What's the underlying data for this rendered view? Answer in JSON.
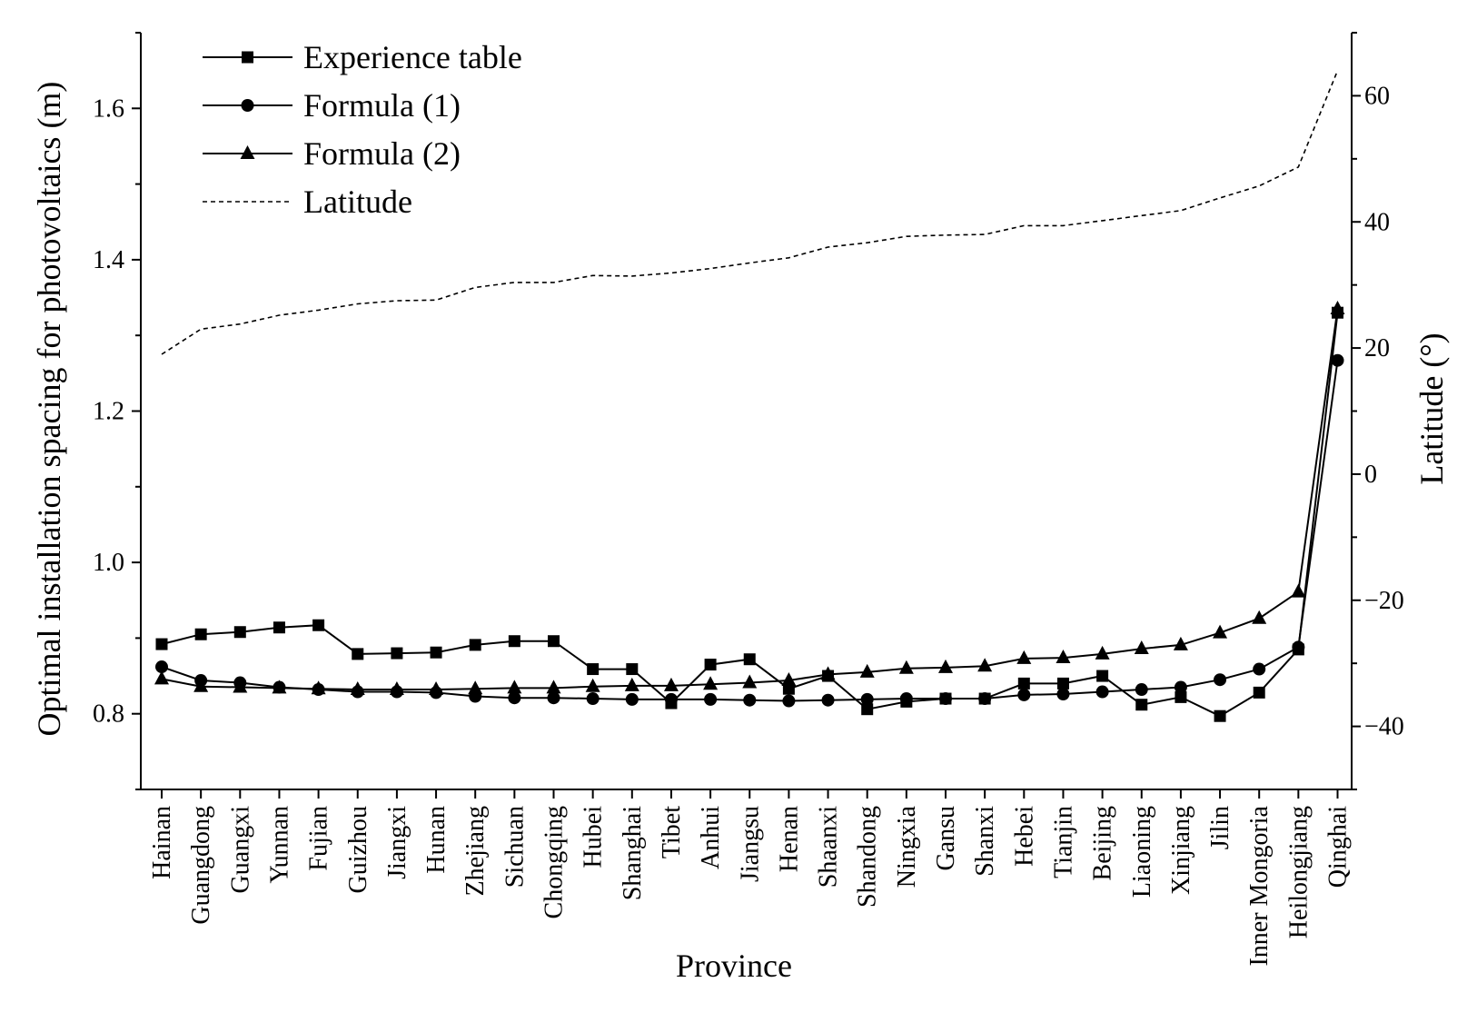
{
  "chart_data": {
    "type": "line",
    "title": "",
    "xlabel": "Province",
    "ylabel": "Optimal installation spacing for photovoltaics (m)",
    "y2label": "Latitude (°)",
    "ylim": [
      0.7,
      1.7
    ],
    "y2lim": [
      -50,
      70
    ],
    "yticks": [
      0.8,
      1.0,
      1.2,
      1.4,
      1.6
    ],
    "y2ticks": [
      -40,
      -20,
      0,
      20,
      40,
      60
    ],
    "legend_position": "top-left",
    "categories": [
      "Hainan",
      "Guangdong",
      "Guangxi",
      "Yunnan",
      "Fujian",
      "Guizhou",
      "Jiangxi",
      "Hunan",
      "Zhejiang",
      "Sichuan",
      "Chongqing",
      "Hubei",
      "Shanghai",
      "Tibet",
      "Anhui",
      "Jiangsu",
      "Henan",
      "Shaanxi",
      "Shandong",
      "Ningxia",
      "Gansu",
      "Shanxi",
      "Hebei",
      "Tianjin",
      "Beijing",
      "Liaoning",
      "Xinjiang",
      "Jilin",
      "Inner Mongoria",
      "Heilongjiang",
      "Qinghai"
    ],
    "series": [
      {
        "name": "Experience table",
        "axis": "left",
        "marker": "square",
        "line": "solid",
        "values": [
          0.892,
          0.905,
          0.908,
          0.914,
          0.917,
          0.879,
          0.88,
          0.881,
          0.891,
          0.896,
          0.896,
          0.859,
          0.859,
          0.814,
          0.865,
          0.872,
          0.833,
          0.85,
          0.806,
          0.816,
          0.82,
          0.82,
          0.84,
          0.84,
          0.85,
          0.812,
          0.822,
          0.797,
          0.828,
          0.885,
          1.33
        ]
      },
      {
        "name": "Formula (1)",
        "axis": "left",
        "marker": "circle",
        "line": "solid",
        "values": [
          0.862,
          0.844,
          0.841,
          0.835,
          0.832,
          0.829,
          0.829,
          0.828,
          0.823,
          0.821,
          0.821,
          0.82,
          0.819,
          0.819,
          0.819,
          0.818,
          0.817,
          0.818,
          0.819,
          0.82,
          0.82,
          0.82,
          0.825,
          0.826,
          0.829,
          0.832,
          0.835,
          0.845,
          0.859,
          0.888,
          1.267
        ]
      },
      {
        "name": "Formula (2)",
        "axis": "left",
        "marker": "triangle",
        "line": "solid",
        "values": [
          0.846,
          0.836,
          0.835,
          0.834,
          0.833,
          0.832,
          0.832,
          0.832,
          0.833,
          0.834,
          0.834,
          0.836,
          0.837,
          0.837,
          0.839,
          0.841,
          0.844,
          0.852,
          0.855,
          0.86,
          0.861,
          0.863,
          0.873,
          0.874,
          0.879,
          0.886,
          0.891,
          0.907,
          0.926,
          0.961,
          1.335
        ]
      },
      {
        "name": "Latitude",
        "axis": "right",
        "marker": "none",
        "line": "dashed",
        "values": [
          19.0,
          23.0,
          23.8,
          25.2,
          26.0,
          27.0,
          27.5,
          27.6,
          29.6,
          30.4,
          30.4,
          31.5,
          31.4,
          31.9,
          32.6,
          33.5,
          34.3,
          36.0,
          36.7,
          37.7,
          37.9,
          38.0,
          39.4,
          39.4,
          40.2,
          41.0,
          41.8,
          43.8,
          45.7,
          48.7,
          64.0
        ]
      }
    ]
  }
}
